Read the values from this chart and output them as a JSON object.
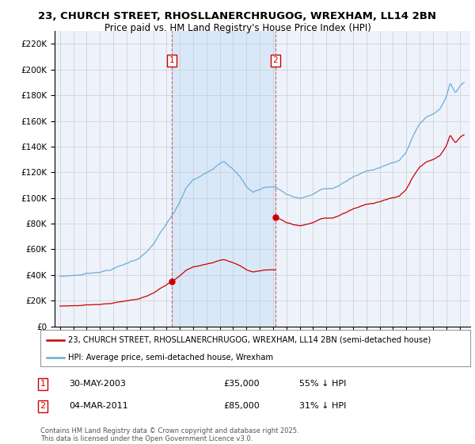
{
  "title_line1": "23, CHURCH STREET, RHOSLLANERCHRUGOG, WREXHAM, LL14 2BN",
  "title_line2": "Price paid vs. HM Land Registry's House Price Index (HPI)",
  "legend_line1": "23, CHURCH STREET, RHOSLLANERCHRUGOG, WREXHAM, LL14 2BN (semi-detached house)",
  "legend_line2": "HPI: Average price, semi-detached house, Wrexham",
  "annotation1_label": "1",
  "annotation1_date": "30-MAY-2003",
  "annotation1_price": "£35,000",
  "annotation1_pct": "55% ↓ HPI",
  "annotation2_label": "2",
  "annotation2_date": "04-MAR-2011",
  "annotation2_price": "£85,000",
  "annotation2_pct": "31% ↓ HPI",
  "footer": "Contains HM Land Registry data © Crown copyright and database right 2025.\nThis data is licensed under the Open Government Licence v3.0.",
  "hpi_color": "#6baed6",
  "price_color": "#cc0000",
  "annotation_color": "#cc0000",
  "background_color": "#ffffff",
  "plot_bg_color": "#eef2fb",
  "shade_color": "#d0e4f7",
  "grid_color": "#cccccc",
  "ylim": [
    0,
    230000
  ],
  "yticks": [
    0,
    20000,
    40000,
    60000,
    80000,
    100000,
    120000,
    140000,
    160000,
    180000,
    200000,
    220000
  ],
  "sale1_x": 2003.41,
  "sale1_y": 35000,
  "sale2_x": 2011.17,
  "sale2_y": 85000,
  "xlim_left": 1994.6,
  "xlim_right": 2025.8
}
